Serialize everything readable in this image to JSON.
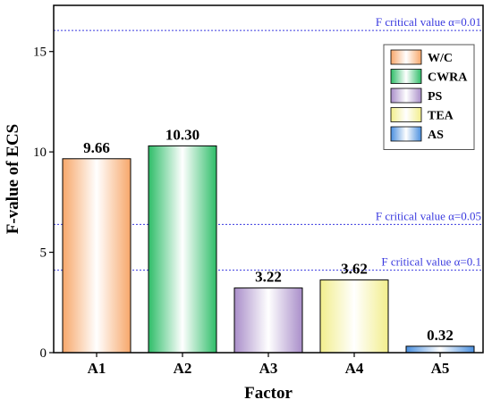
{
  "chart_data": {
    "type": "bar",
    "xlabel": "Factor",
    "ylabel": "F-value of ECS",
    "ylim": [
      0,
      17.3
    ],
    "yticks": [
      0,
      5,
      10,
      15
    ],
    "categories": [
      "A1",
      "A2",
      "A3",
      "A4",
      "A5"
    ],
    "values": [
      9.66,
      10.3,
      3.22,
      3.62,
      0.32
    ],
    "value_labels": [
      "9.66",
      "10.30",
      "3.22",
      "3.62",
      "0.32"
    ],
    "series_colors": [
      "#f7a76a",
      "#2ebd68",
      "#a98ec9",
      "#f2ee8c",
      "#4a8fde"
    ],
    "legend": {
      "placement": "top-right",
      "items": [
        "W/C",
        "CWRA",
        "PS",
        "TEA",
        "AS"
      ]
    },
    "reference_lines": [
      {
        "value": 16.05,
        "label": "F critical value α=0.01"
      },
      {
        "value": 6.39,
        "label": "F critical value α=0.05"
      },
      {
        "value": 4.11,
        "label": "F critical value α=0.1"
      }
    ],
    "reference_color": "#3a3adf",
    "grid": false
  }
}
